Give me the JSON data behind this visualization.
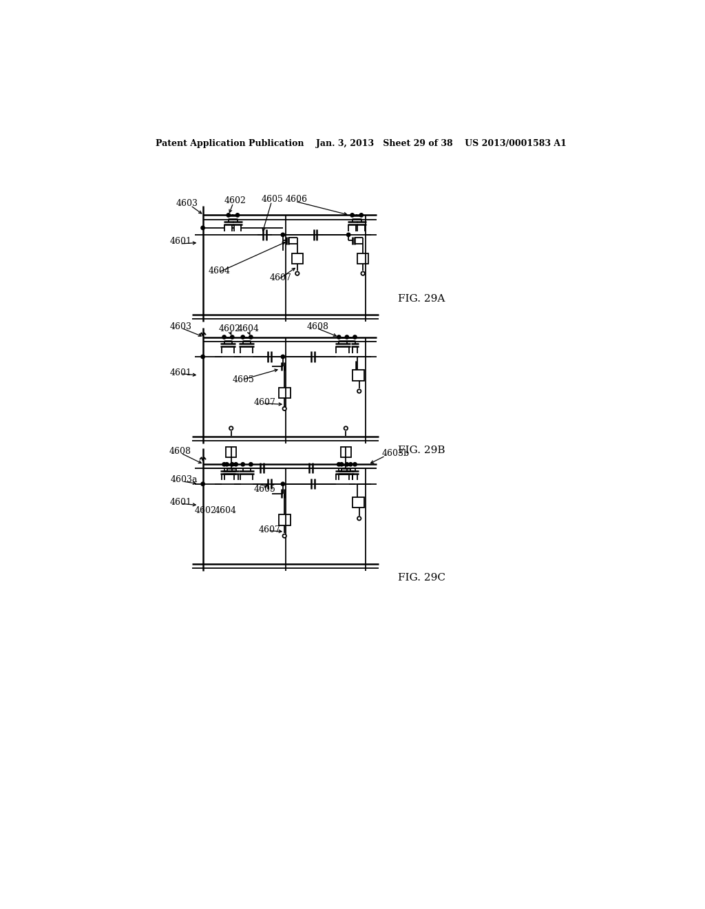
{
  "bg_color": "#ffffff",
  "header": "Patent Application Publication    Jan. 3, 2013   Sheet 29 of 38    US 2013/0001583 A1",
  "figA_label": "FIG. 29A",
  "figB_label": "FIG. 29B",
  "figC_label": "FIG. 29C",
  "lw_thin": 1.3,
  "lw_med": 1.8,
  "lw_thick": 2.5,
  "dot_r": 3.5,
  "open_r": 3.5
}
